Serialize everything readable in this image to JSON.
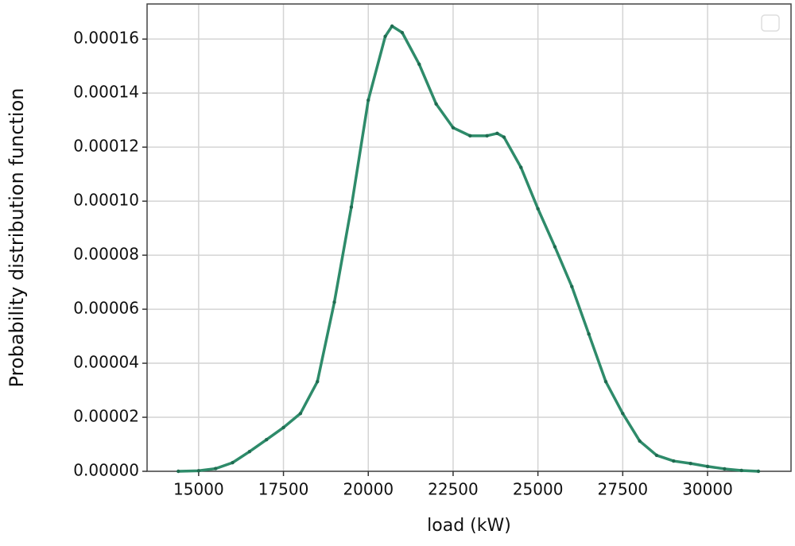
{
  "chart_data": {
    "type": "line",
    "x_label": "load (kW)",
    "y_label": "Probability distribution function",
    "x": [
      14400,
      15000,
      15500,
      16000,
      16500,
      17000,
      17500,
      18000,
      18500,
      19000,
      19500,
      20000,
      20500,
      20700,
      21000,
      21500,
      22000,
      22500,
      23000,
      23500,
      23800,
      24000,
      24500,
      25000,
      25500,
      26000,
      26500,
      27000,
      27500,
      28000,
      28500,
      29000,
      29500,
      30000,
      30500,
      31000,
      31500
    ],
    "values": [
      0,
      2e-07,
      1e-06,
      3.2e-06,
      7.3e-06,
      1.17e-05,
      1.62e-05,
      2.14e-05,
      3.32e-05,
      6.26e-05,
      9.78e-05,
      0.0001374,
      0.000161,
      0.0001648,
      0.0001624,
      0.0001507,
      0.000136,
      0.0001272,
      0.0001242,
      0.0001242,
      0.0001251,
      0.0001237,
      0.0001125,
      9.72e-05,
      8.31e-05,
      6.84e-05,
      5.08e-05,
      3.32e-05,
      2.14e-05,
      1.12e-05,
      5.9e-06,
      3.8e-06,
      2.9e-06,
      1.8e-06,
      9e-07,
      3e-07,
      0
    ],
    "color": "#2e8b6a",
    "xlim": [
      13480,
      32460
    ],
    "xticks": [
      15000,
      17500,
      20000,
      22500,
      25000,
      27500,
      30000
    ],
    "ylim": [
      0,
      0.000173
    ],
    "yticks": [
      {
        "value": 0,
        "label": "0.00000"
      },
      2e-05,
      4e-05,
      6e-05,
      8e-05,
      {
        "value": 0.0001,
        "label": "0.00010"
      },
      0.00012,
      0.00014,
      0.00016
    ],
    "grid": true
  }
}
